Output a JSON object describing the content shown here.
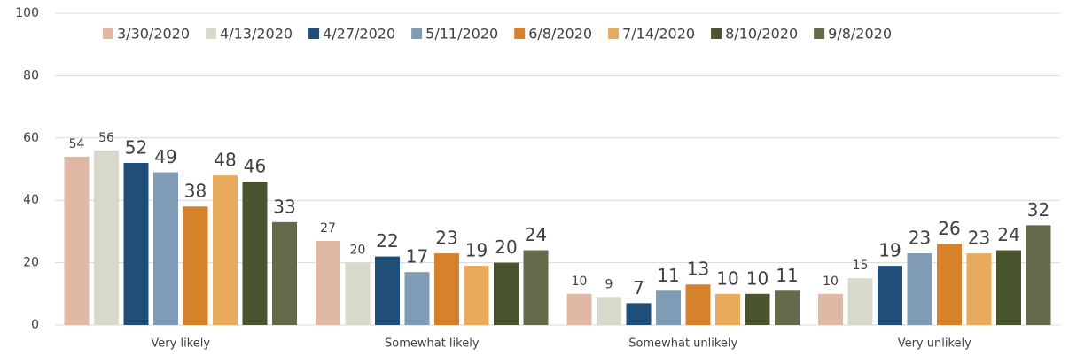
{
  "chart_data": {
    "type": "bar",
    "categories": [
      "Very likely",
      "Somewhat likely",
      "Somewhat unlikely",
      "Very unlikely"
    ],
    "series": [
      {
        "name": "3/30/2020",
        "color": "#e0b9a6",
        "values": [
          54,
          27,
          10,
          10
        ]
      },
      {
        "name": "4/13/2020",
        "color": "#d9d9cb",
        "values": [
          56,
          20,
          9,
          15
        ]
      },
      {
        "name": "4/27/2020",
        "color": "#1f4e79",
        "values": [
          52,
          22,
          7,
          19
        ]
      },
      {
        "name": "5/11/2020",
        "color": "#7f9bb5",
        "values": [
          49,
          17,
          11,
          23
        ]
      },
      {
        "name": "6/8/2020",
        "color": "#d6822a",
        "values": [
          38,
          23,
          13,
          26
        ]
      },
      {
        "name": "7/14/2020",
        "color": "#e8ab5c",
        "values": [
          48,
          19,
          10,
          23
        ]
      },
      {
        "name": "8/10/2020",
        "color": "#4a5530",
        "values": [
          46,
          20,
          10,
          24
        ]
      },
      {
        "name": "9/8/2020",
        "color": "#636b4b",
        "values": [
          33,
          24,
          11,
          32
        ]
      }
    ],
    "ylim": [
      0,
      100
    ],
    "yticks": [
      0,
      20,
      40,
      60,
      80,
      100
    ],
    "grid": true,
    "legend": "top"
  }
}
